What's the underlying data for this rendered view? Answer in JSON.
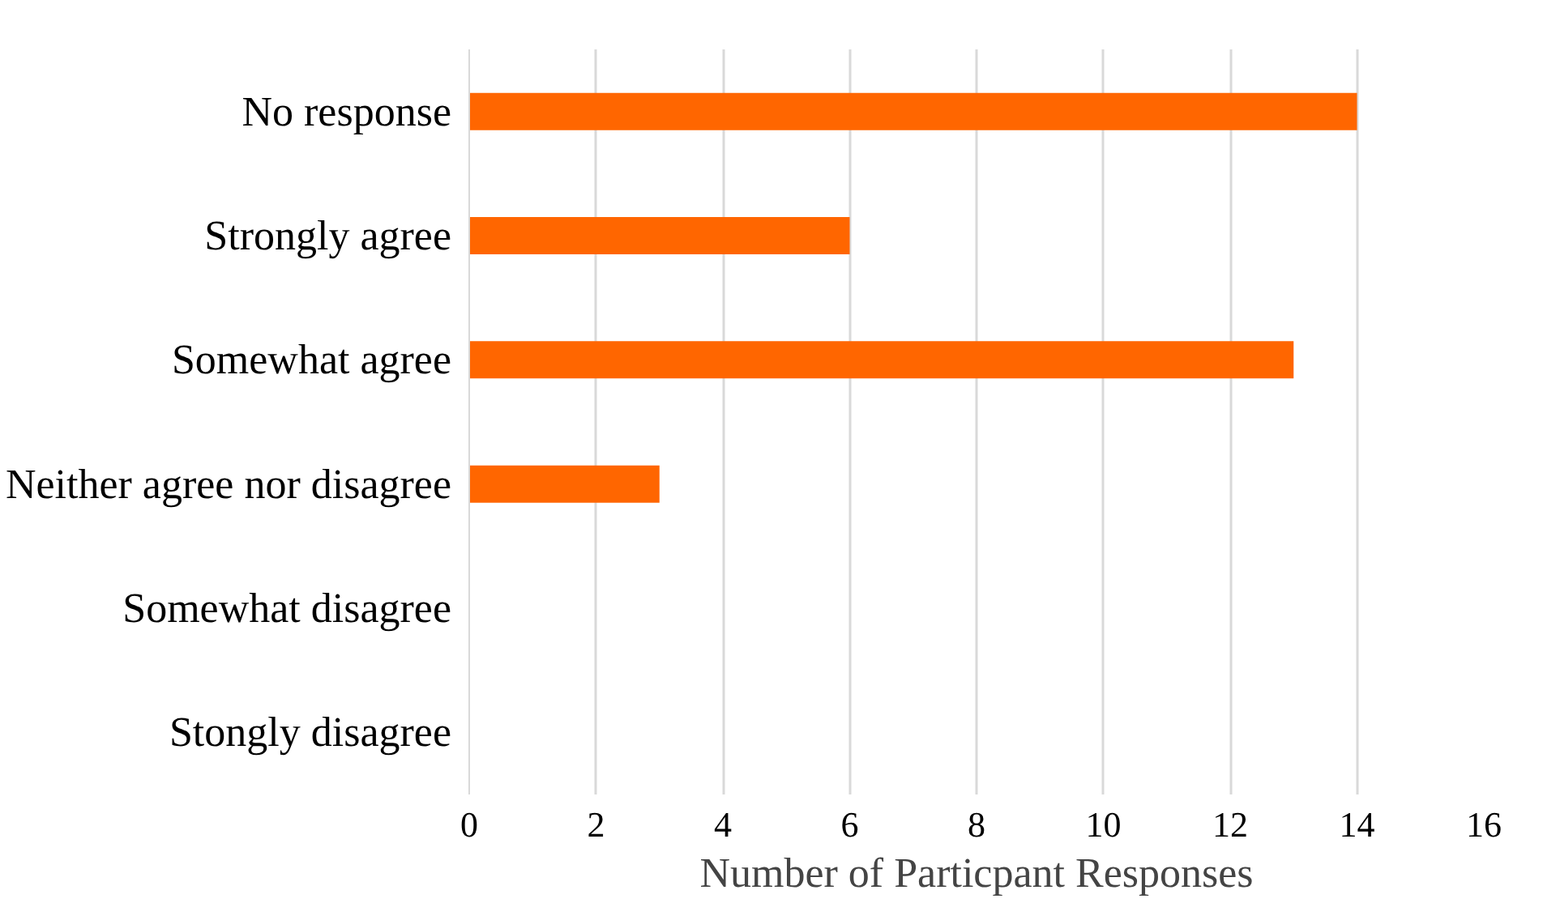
{
  "chart_data": {
    "type": "bar",
    "orientation": "horizontal",
    "categories": [
      "No response",
      "Strongly agree",
      "Somewhat agree",
      "Neither agree nor disagree",
      "Somewhat disagree",
      "Stongly disagree"
    ],
    "values": [
      14,
      6,
      13,
      3,
      0,
      0
    ],
    "color": "#ff6600",
    "xlabel": "Number of Particpant Responses",
    "xlim": [
      0,
      16
    ],
    "xticks": [
      0,
      2,
      4,
      6,
      8,
      10,
      12,
      14,
      16
    ],
    "grid": "x"
  }
}
